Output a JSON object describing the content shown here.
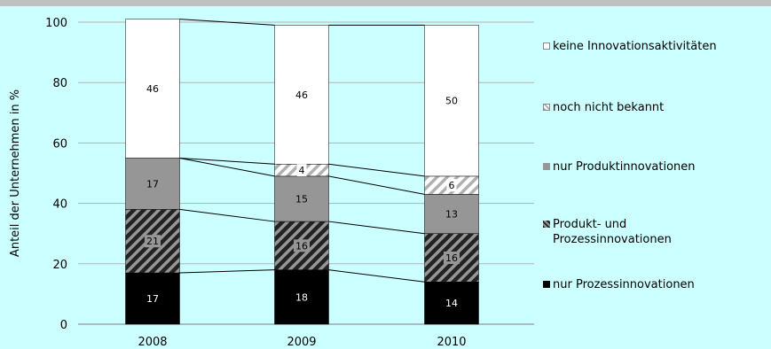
{
  "chart_data": {
    "type": "bar",
    "stacked": true,
    "categories": [
      "2008",
      "2009",
      "2010"
    ],
    "ylabel": "Anteil der Unternehmen in %",
    "ylim": [
      0,
      100
    ],
    "yticks": [
      "0",
      "20",
      "40",
      "60",
      "80",
      "100"
    ],
    "grid": true,
    "legend_position": "right",
    "series_lines": true,
    "series": [
      {
        "name": "nur Prozessinnovationen",
        "values": [
          17,
          18,
          14
        ],
        "labels": [
          "17",
          "18",
          "14"
        ],
        "fill": "#000000",
        "pattern": "solid",
        "label_color": "#ffffff"
      },
      {
        "name": "Produkt- und Prozessinnovationen",
        "values": [
          21,
          16,
          16
        ],
        "labels": [
          "21",
          "16",
          "16"
        ],
        "fill": "#333333",
        "pattern": "dark-diagonal",
        "label_color": "#000000"
      },
      {
        "name": "nur Produktinnovationen",
        "values": [
          17,
          15,
          13
        ],
        "labels": [
          "17",
          "15",
          "13"
        ],
        "fill": "#969696",
        "pattern": "solid",
        "label_color": "#000000"
      },
      {
        "name": "noch nicht bekannt",
        "values": [
          0,
          4,
          6
        ],
        "labels": [
          "",
          "4",
          "6"
        ],
        "fill": "#ffffff",
        "pattern": "light-diagonal",
        "label_color": "#000000"
      },
      {
        "name": "keine Innovationsaktivitäten",
        "values": [
          46,
          46,
          50
        ],
        "labels": [
          "46",
          "46",
          "50"
        ],
        "fill": "#ffffff",
        "pattern": "solid",
        "label_color": "#000000"
      }
    ],
    "legend_order": [
      "keine Innovationsaktivitäten",
      "noch nicht bekannt",
      "nur Produktinnovationen",
      "Produkt- und Prozessinnovationen",
      "nur Prozessinnovationen"
    ]
  },
  "legend": {
    "items": [
      {
        "label": "keine Innovationsaktivitäten",
        "pattern": "solid",
        "fill": "#ffffff"
      },
      {
        "label": "noch nicht bekannt",
        "pattern": "light-diagonal",
        "fill": "#ffffff"
      },
      {
        "label": "nur Produktinnovationen",
        "pattern": "solid",
        "fill": "#969696"
      },
      {
        "label": "Produkt- und Prozessinnovationen",
        "pattern": "dark-diagonal",
        "fill": "#333333"
      },
      {
        "label": "nur Prozessinnovationen",
        "pattern": "solid",
        "fill": "#000000"
      }
    ]
  }
}
